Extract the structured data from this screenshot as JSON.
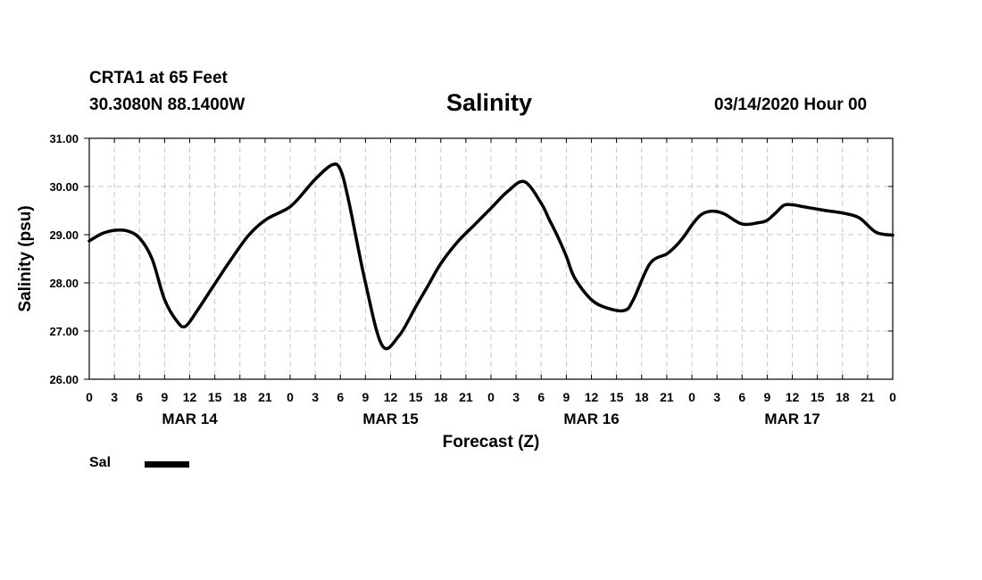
{
  "header": {
    "station": "CRTA1 at 65 Feet",
    "coords": "30.3080N 88.1400W",
    "title": "Salinity",
    "issued": "03/14/2020 Hour 00"
  },
  "legend": {
    "label": "Sal",
    "color": "#000000"
  },
  "chart_data": {
    "type": "line",
    "title": "Salinity",
    "xlabel": "Forecast (Z)",
    "ylabel": "Salinity (psu)",
    "xlim": [
      0,
      96
    ],
    "ylim": [
      26.0,
      31.0
    ],
    "yticks": [
      "31.00",
      "30.00",
      "29.00",
      "28.00",
      "27.00",
      "26.00"
    ],
    "ytick_values": [
      31,
      30,
      29,
      28,
      27,
      26
    ],
    "xtick_labels": [
      "0",
      "3",
      "6",
      "9",
      "12",
      "15",
      "18",
      "21",
      "0",
      "3",
      "6",
      "9",
      "12",
      "15",
      "18",
      "21",
      "0",
      "3",
      "6",
      "9",
      "12",
      "15",
      "18",
      "21",
      "0",
      "3",
      "6",
      "9",
      "12",
      "15",
      "18",
      "21",
      "0"
    ],
    "day_labels": [
      {
        "label": "MAR 14",
        "hour": 12
      },
      {
        "label": "MAR 15",
        "hour": 36
      },
      {
        "label": "MAR 16",
        "hour": 60
      },
      {
        "label": "MAR 17",
        "hour": 84
      }
    ],
    "grid": true,
    "legend_position": "bottom-left",
    "series": [
      {
        "name": "Sal",
        "color": "#000000",
        "x": [
          0,
          1.5,
          3,
          4.5,
          6,
          7.5,
          9,
          10.5,
          11.5,
          13,
          15,
          17,
          19,
          21,
          23,
          24,
          25,
          27,
          29,
          30,
          31,
          33,
          35,
          37,
          39,
          40.5,
          42,
          44,
          46,
          48,
          50,
          52,
          54,
          55,
          56,
          57,
          58,
          60,
          62,
          64,
          65,
          67,
          69,
          70,
          71,
          72,
          73,
          74,
          75,
          76,
          78,
          80,
          81,
          82,
          83,
          84,
          85,
          86,
          87,
          88,
          90,
          92,
          94,
          96
        ],
        "values": [
          28.87,
          29.02,
          29.09,
          29.08,
          28.93,
          28.5,
          27.65,
          27.2,
          27.1,
          27.45,
          27.98,
          28.5,
          28.98,
          29.3,
          29.48,
          29.58,
          29.75,
          30.15,
          30.45,
          30.35,
          29.7,
          28.0,
          26.7,
          26.9,
          27.5,
          27.95,
          28.4,
          28.85,
          29.2,
          29.55,
          29.9,
          30.1,
          29.65,
          29.3,
          28.95,
          28.55,
          28.1,
          27.65,
          27.47,
          27.43,
          27.65,
          28.4,
          28.6,
          28.75,
          28.95,
          29.2,
          29.4,
          29.48,
          29.48,
          29.42,
          29.22,
          29.25,
          29.3,
          29.45,
          29.61,
          29.62,
          29.59,
          29.56,
          29.53,
          29.5,
          29.45,
          29.35,
          29.05,
          28.99
        ]
      }
    ]
  }
}
